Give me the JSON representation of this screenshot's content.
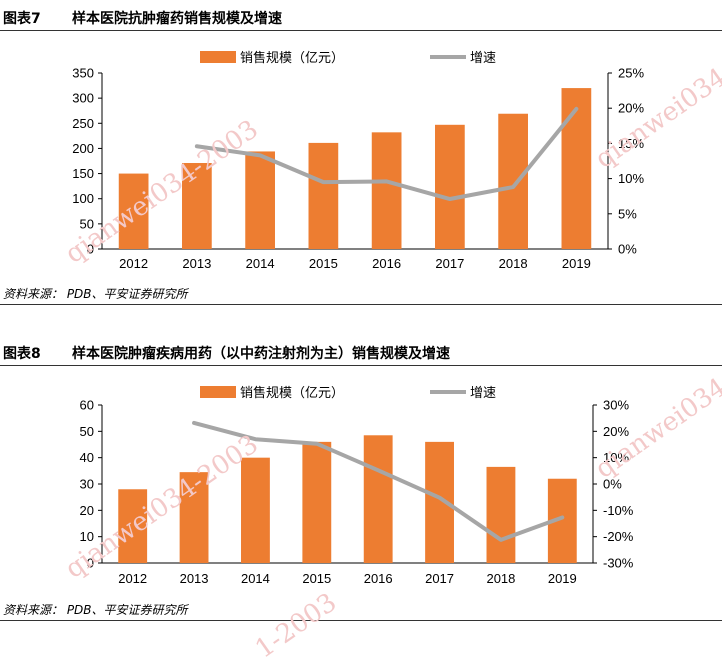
{
  "figures": [
    {
      "number": "图表7",
      "title": "样本医院抗肿瘤药销售规模及增速",
      "source": "资料来源： PDB、平安证券研究所"
    },
    {
      "number": "图表8",
      "title": "样本医院肿瘤疾病用药（以中药注射剂为主）销售规模及增速",
      "source": "资料来源： PDB、平安证券研究所"
    }
  ],
  "watermarks": [
    "qianwei034-2003",
    "qianwei034-",
    "qianwei034-2003",
    "qianwei034-",
    "1-2003"
  ],
  "colors": {
    "bar": "#ED7D31",
    "line": "#A6A6A6",
    "axis": "#000000"
  },
  "chart_data": [
    {
      "type": "bar",
      "categories": [
        "2012",
        "2013",
        "2014",
        "2015",
        "2016",
        "2017",
        "2018",
        "2019"
      ],
      "series": [
        {
          "name": "销售规模（亿元）",
          "type": "bar",
          "axis": "left",
          "values": [
            150,
            171,
            194,
            211,
            232,
            247,
            269,
            320
          ]
        },
        {
          "name": "增速",
          "type": "line",
          "axis": "right",
          "values": [
            null,
            14.6,
            13.3,
            9.5,
            9.6,
            7.1,
            8.8,
            19.9
          ]
        }
      ],
      "y_left": {
        "min": 0,
        "max": 350,
        "ticks": [
          0,
          50,
          100,
          150,
          200,
          250,
          300,
          350
        ],
        "labels": [
          "0",
          "50",
          "100",
          "150",
          "200",
          "250",
          "300",
          "350"
        ]
      },
      "y_right": {
        "min": 0,
        "max": 25,
        "ticks": [
          0,
          5,
          10,
          15,
          20,
          25
        ],
        "labels": [
          "0%",
          "5%",
          "10%",
          "15%",
          "20%",
          "25%"
        ]
      },
      "legend": "top-center",
      "grid": false
    },
    {
      "type": "bar",
      "categories": [
        "2012",
        "2013",
        "2014",
        "2015",
        "2016",
        "2017",
        "2018",
        "2019"
      ],
      "series": [
        {
          "name": "销售规模（亿元）",
          "type": "bar",
          "axis": "left",
          "values": [
            28,
            34.5,
            40,
            46,
            48.5,
            46,
            36.5,
            32
          ]
        },
        {
          "name": "增速",
          "type": "line",
          "axis": "right",
          "values": [
            null,
            23.2,
            17,
            15.3,
            5.2,
            -5.2,
            -21.2,
            -12.7
          ]
        }
      ],
      "y_left": {
        "min": 0,
        "max": 60,
        "ticks": [
          0,
          10,
          20,
          30,
          40,
          50,
          60
        ],
        "labels": [
          "0",
          "10",
          "20",
          "30",
          "40",
          "50",
          "60"
        ]
      },
      "y_right": {
        "min": -30,
        "max": 30,
        "ticks": [
          -30,
          -20,
          -10,
          0,
          10,
          20,
          30
        ],
        "labels": [
          "-30%",
          "-20%",
          "-10%",
          "0%",
          "10%",
          "20%",
          "30%"
        ]
      },
      "legend": "top-center",
      "grid": false
    }
  ]
}
